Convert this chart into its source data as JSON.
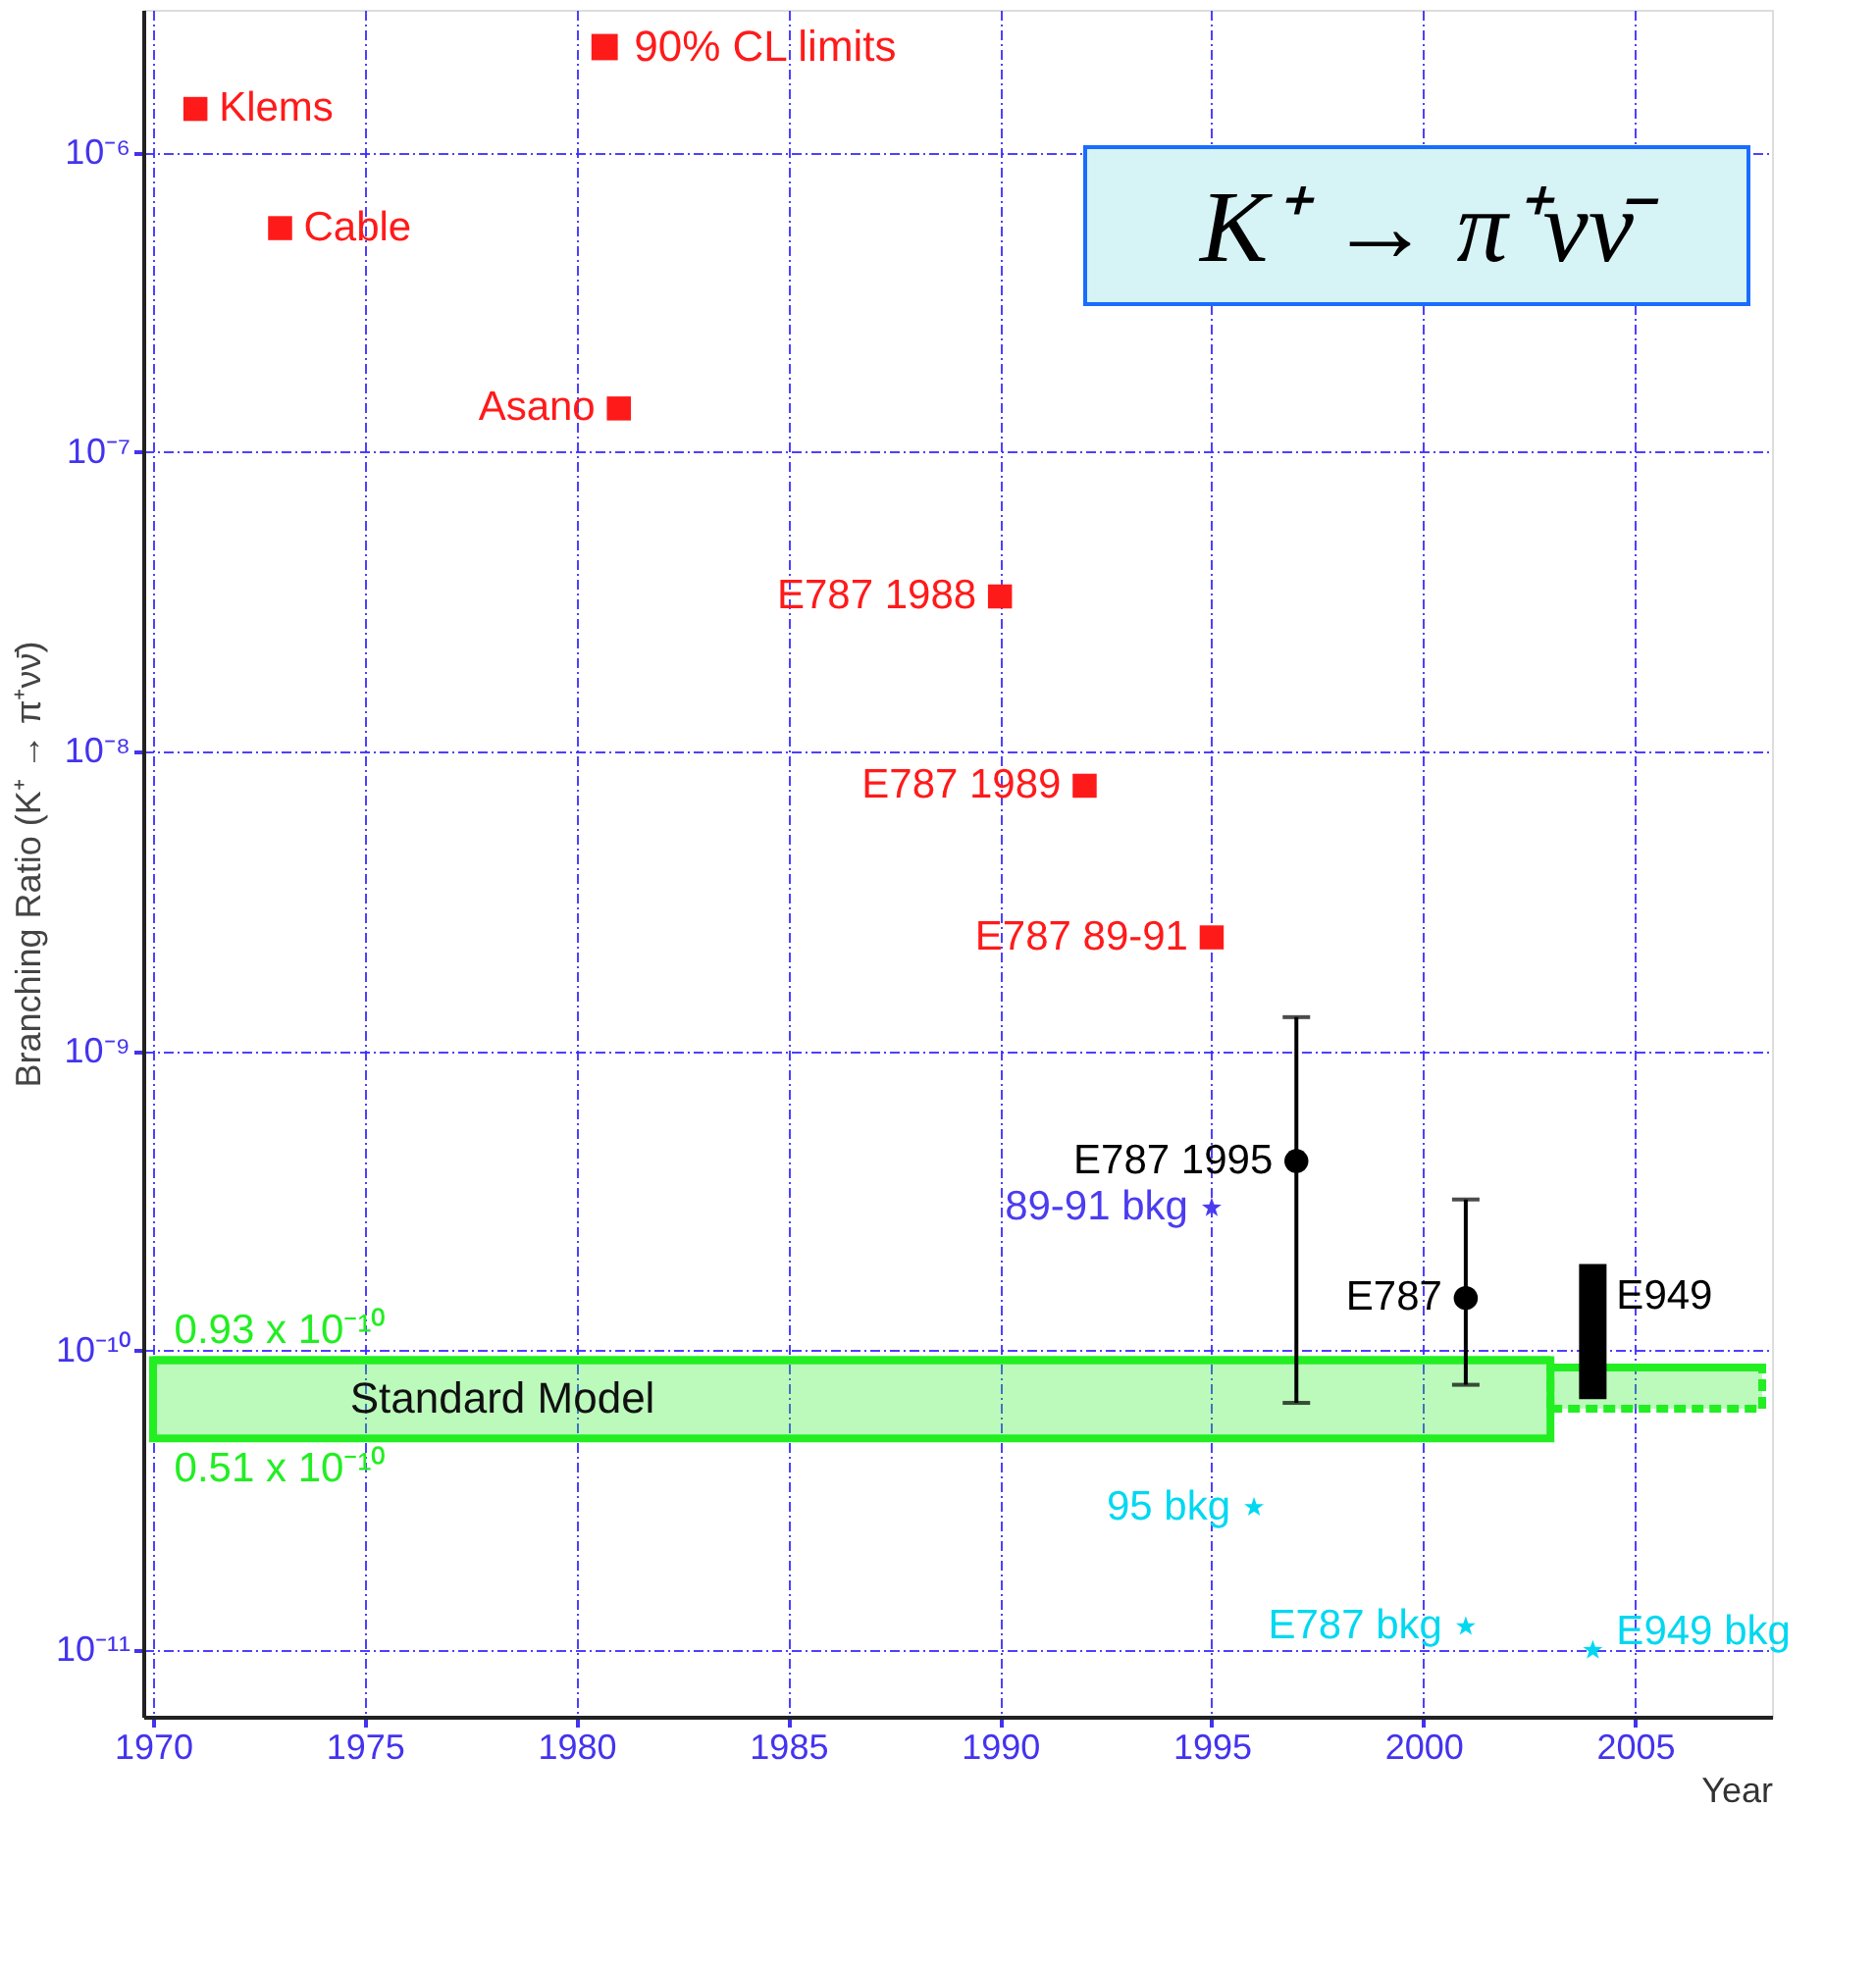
{
  "chart_data": {
    "type": "scatter",
    "title": "K⁺ → π⁺νν̄",
    "xlabel": "Year",
    "ylabel": "Branching Ratio (K⁺ → π⁺νν̄)",
    "log": "y",
    "grid": true,
    "legend": "top",
    "xlim": [
      1970,
      2008
    ],
    "xticks": [
      1970,
      1975,
      1980,
      1985,
      1990,
      1995,
      2000,
      2005
    ],
    "ylim": [
      6e-12,
      3e-06
    ],
    "yticks": [
      {
        "value": 1e-11,
        "label": "10⁻¹¹"
      },
      {
        "value": 1e-10,
        "label": "10⁻¹⁰"
      },
      {
        "value": 1e-09,
        "label": "10⁻⁹"
      },
      {
        "value": 1e-08,
        "label": "10⁻⁸"
      },
      {
        "value": 1e-07,
        "label": "10⁻⁷"
      },
      {
        "value": 1e-06,
        "label": "10⁻⁶"
      }
    ],
    "series": [
      {
        "name": "Standard Model",
        "type": "line",
        "color": "#22ee22",
        "x": [
          1970,
          2003
        ],
        "values": [
          9.3e-11,
          9.3e-11
        ],
        "lower": [
          5.1e-11,
          5.1e-11
        ],
        "upper": [
          9.3e-11,
          9.3e-11
        ]
      },
      {
        "type": "line",
        "color": "#22ee22",
        "line_style": "dashed",
        "x": [
          2003,
          2008
        ],
        "values": [
          8.8e-11,
          8.8e-11
        ],
        "lower": [
          6.4e-11,
          6.4e-11
        ],
        "upper": [
          8.8e-11,
          8.8e-11
        ]
      },
      {
        "name": "90% CL limits",
        "marker": "square",
        "color": "#ff1a1a",
        "x": [
          1971,
          1973,
          1981,
          1990,
          1992,
          1995
        ],
        "values": [
          1.4e-06,
          5.6e-07,
          1.4e-07,
          3.3e-08,
          7.7e-09,
          2.4e-09
        ]
      },
      {
        "marker": "circle",
        "color": "#000000",
        "x": [
          1997,
          2001
        ],
        "values": [
          4.3e-10,
          1.5e-10
        ],
        "errors": [
          [
            6.7e-11,
            1.3e-09
          ],
          [
            7.7e-11,
            3.2e-10
          ]
        ]
      },
      {
        "type": "bar",
        "color": "#000000",
        "x": [
          2004
        ],
        "base": [
          6.9e-11
        ],
        "values": [
          1.26e-10
        ]
      },
      {
        "marker": "star",
        "color": "#4b3cf0",
        "x": [
          1995
        ],
        "values": [
          3e-10
        ]
      },
      {
        "marker": "star",
        "color": "#00d8f0",
        "x": [
          1996,
          2001,
          2004
        ],
        "values": [
          3e-11,
          1.2e-11,
          1e-11
        ]
      }
    ],
    "annotations": [
      {
        "text": "Klems",
        "x": 1971,
        "y": 1.4e-06
      },
      {
        "text": "Cable",
        "x": 1973,
        "y": 5.6e-07
      },
      {
        "text": "Asano",
        "x": 1981,
        "y": 1.4e-07
      },
      {
        "text": "E787 1988",
        "x": 1990,
        "y": 3.3e-08
      },
      {
        "text": "E787 1989",
        "x": 1992,
        "y": 7.7e-09
      },
      {
        "text": "E787 89-91",
        "x": 1995,
        "y": 2.4e-09
      },
      {
        "text": "E787 1995",
        "x": 1997,
        "y": 4.3e-10
      },
      {
        "text": "E787",
        "x": 2001,
        "y": 1.5e-10
      },
      {
        "text": "E949",
        "x": 2004,
        "y": 1.95e-10
      },
      {
        "text": "89-91 bkg",
        "x": 1995,
        "y": 3e-10
      },
      {
        "text": "95 bkg",
        "x": 1996,
        "y": 3e-11
      },
      {
        "text": "E787 bkg",
        "x": 2001,
        "y": 1.2e-11
      },
      {
        "text": "E949 bkg",
        "x": 2004,
        "y": 1e-11
      },
      {
        "text": "0.93 x 10⁻¹⁰",
        "x": 1970.5,
        "y": 9.3e-11
      },
      {
        "text": "0.51 x 10⁻¹⁰",
        "x": 1970.5,
        "y": 5.1e-11
      }
    ]
  }
}
